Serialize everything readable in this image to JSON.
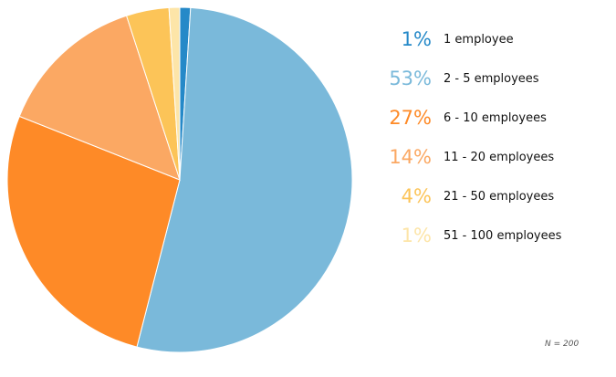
{
  "chart_data": {
    "type": "pie",
    "slices": [
      {
        "label": "1 employee",
        "value": 1,
        "percent_label": "1%",
        "color": "#2589c8"
      },
      {
        "label": "2 - 5 employees",
        "value": 53,
        "percent_label": "53%",
        "color": "#7ab9da"
      },
      {
        "label": "6 - 10 employees",
        "value": 27,
        "percent_label": "27%",
        "color": "#fe8a27"
      },
      {
        "label": "11 - 20 employees",
        "value": 14,
        "percent_label": "14%",
        "color": "#fba863"
      },
      {
        "label": "21 - 50 employees",
        "value": 4,
        "percent_label": "4%",
        "color": "#fcc458"
      },
      {
        "label": "51 - 100 employees",
        "value": 1,
        "percent_label": "1%",
        "color": "#fde5a8"
      }
    ],
    "legend_position": "right",
    "note": "N = 200"
  }
}
